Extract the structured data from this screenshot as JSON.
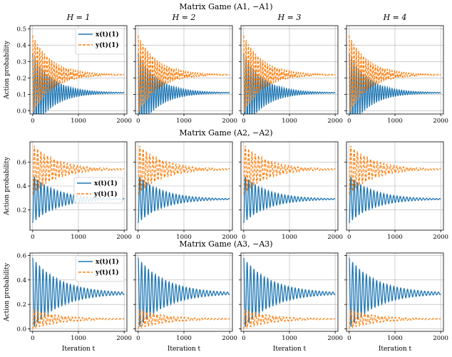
{
  "figure": {
    "ylabel": "Action probability",
    "xlabel": "Iteration t"
  },
  "colors": {
    "x_series": "#1f77b4",
    "y_series": "#ff7f0e",
    "grid": "#b0b0b0",
    "axis": "#000000"
  },
  "chart_data": [
    {
      "type": "line",
      "title": "Matrix Game (A1, −A1)",
      "panel_titles": [
        "H = 1",
        "H = 2",
        "H = 3",
        "H = 4"
      ],
      "xlim": [
        -60,
        2060
      ],
      "ylim": [
        -0.02,
        0.52
      ],
      "xticks": [
        0,
        1000,
        2000
      ],
      "yticks": [
        0.0,
        0.1,
        0.2,
        0.3,
        0.4,
        0.5
      ],
      "ytick_labels": [
        "0.0",
        "0.1",
        "0.2",
        "0.3",
        "0.4",
        "0.5"
      ],
      "legend": {
        "location": "upper-right",
        "entries": [
          "x(t)(1)",
          "y(t)(1)"
        ]
      },
      "series": [
        {
          "name": "x(t)(1)",
          "style": "solid",
          "start": 0.35,
          "equilibrium": 0.11,
          "amplitude": 0.12,
          "period": 52,
          "decay": 420
        },
        {
          "name": "y(t)(1)",
          "style": "dashed",
          "start": 0.46,
          "equilibrium": 0.22,
          "amplitude": 0.1,
          "period": 52,
          "decay": 420
        }
      ]
    },
    {
      "type": "line",
      "title": "Matrix Game (A2, −A2)",
      "panel_titles": [],
      "xlim": [
        -60,
        2060
      ],
      "ylim": [
        0.03,
        0.77
      ],
      "xticks": [
        0,
        1000,
        2000
      ],
      "yticks": [
        0.2,
        0.4,
        0.6
      ],
      "ytick_labels": [
        "0.2",
        "0.4",
        "0.6"
      ],
      "legend": {
        "location": "center-left",
        "entries": [
          "x(t)(1)",
          "y(t)(1)"
        ]
      },
      "series": [
        {
          "name": "x(t)(1)",
          "style": "solid",
          "start": 0.27,
          "equilibrium": 0.29,
          "amplitude": 0.2,
          "period": 72,
          "decay": 520
        },
        {
          "name": "y(t)(1)",
          "style": "dashed",
          "start": 0.33,
          "equilibrium": 0.54,
          "amplitude": 0.2,
          "period": 72,
          "decay": 520
        }
      ]
    },
    {
      "type": "line",
      "title": "Matrix Game (A3, −A3)",
      "panel_titles": [],
      "xlim": [
        -60,
        2060
      ],
      "ylim": [
        -0.02,
        0.62
      ],
      "xticks": [
        0,
        1000,
        2000
      ],
      "yticks": [
        0.0,
        0.2,
        0.4,
        0.6
      ],
      "ytick_labels": [
        "0.0",
        "0.2",
        "0.4",
        "0.6"
      ],
      "legend": {
        "location": "upper-right",
        "entries": [
          "x(t)(1)",
          "y(t)(1)"
        ]
      },
      "series": [
        {
          "name": "x(t)(1)",
          "style": "solid",
          "start": 0.58,
          "equilibrium": 0.29,
          "amplitude": 0.06,
          "period": 75,
          "decay": 600
        },
        {
          "name": "y(t)(1)",
          "style": "dashed",
          "start": 0.0,
          "equilibrium": 0.08,
          "amplitude": 0.06,
          "period": 75,
          "decay": 600
        }
      ]
    }
  ]
}
